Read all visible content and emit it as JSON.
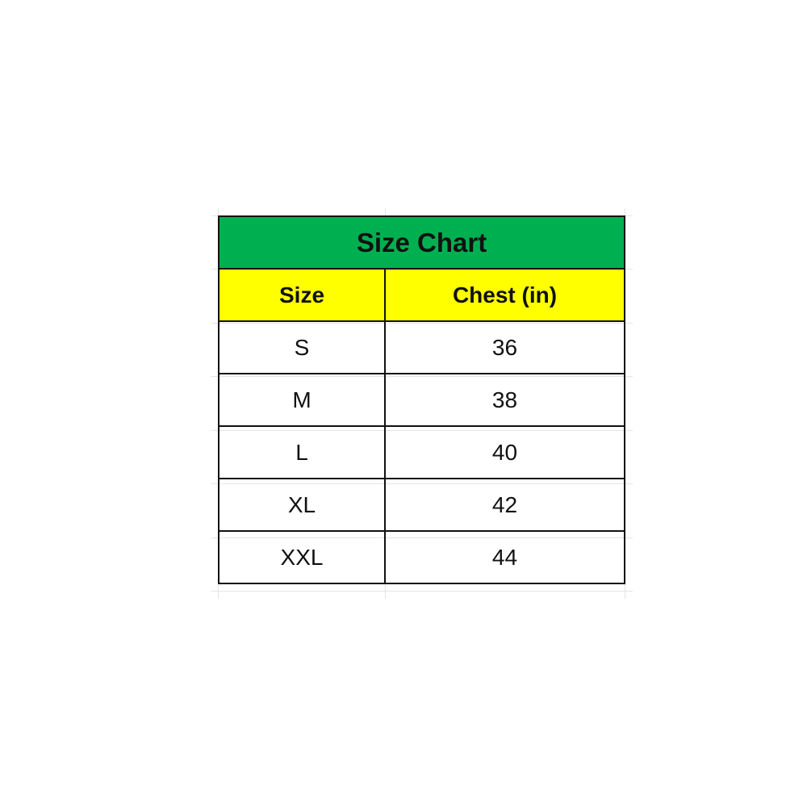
{
  "title": "Size Chart",
  "colors": {
    "title_bg": "#00b050",
    "header_bg": "#ffff00"
  },
  "columns": [
    "Size",
    "Chest (in)"
  ],
  "rows": [
    {
      "size": "S",
      "chest": "36"
    },
    {
      "size": "M",
      "chest": "38"
    },
    {
      "size": "L",
      "chest": "40"
    },
    {
      "size": "XL",
      "chest": "42"
    },
    {
      "size": "XXL",
      "chest": "44"
    }
  ]
}
